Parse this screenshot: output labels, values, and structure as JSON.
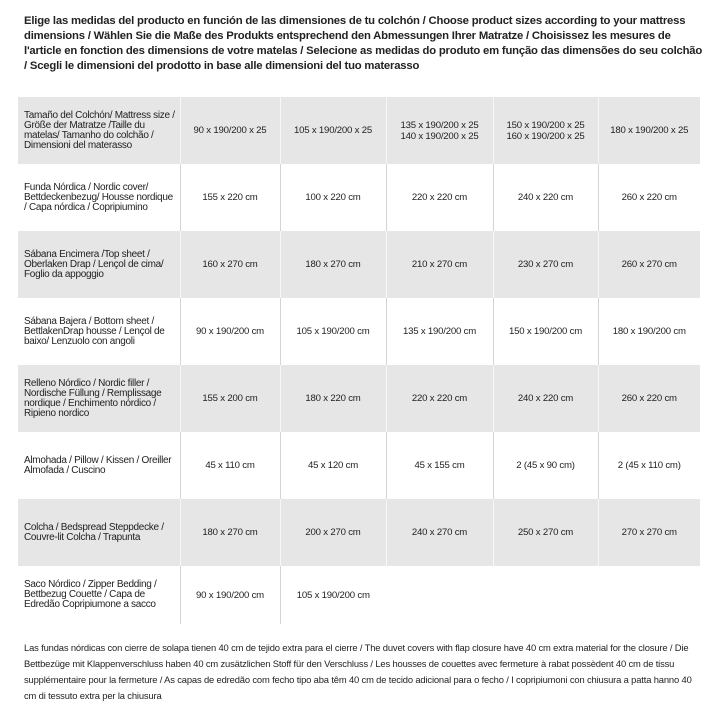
{
  "intro": "Elige las medidas del producto en función de las dimensiones de tu colchón / Choose product sizes according to your mattress dimensions / Wählen Sie die Maße des Produkts entsprechend den Abmessungen Ihrer Matratze / Choisissez les mesures de l'article en fonction des dimensions de votre matelas / Selecione as medidas do produto em função das dimensões do seu colchão / Scegli le dimensioni del prodotto in base alle dimensioni del tuo materasso",
  "table": {
    "header": [
      "Tamaño del Colchón/ Mattress size / Größe der Matratze /Taille du matelas/ Tamanho do colchão / Dimensioni del materasso",
      "90 x 190/200 x 25",
      "105 x 190/200 x 25",
      "135 x 190/200 x 25\n140 x 190/200 x 25",
      "150 x 190/200 x 25\n160 x 190/200 x 25",
      "180 x 190/200 x 25"
    ],
    "rows": [
      [
        "Funda Nórdica /  Nordic cover/ Bettdeckenbezug/ Housse nordique / Capa nórdica / Copripiumino",
        "155 x 220 cm",
        "100 x 220 cm",
        "220 x 220 cm",
        "240 x 220 cm",
        "260 x 220 cm"
      ],
      [
        "Sábana Encimera /Top sheet / Oberlaken Drap / Lençol de cima/ Foglio da appoggio",
        "160 x 270 cm",
        "180 x 270 cm",
        "210 x 270 cm",
        "230 x 270 cm",
        "260 x 270 cm"
      ],
      [
        "Sábana Bajera / Bottom sheet / BettlakenDrap housse / Lençol de baixo/ Lenzuolo con angoli",
        "90 x 190/200 cm",
        "105 x 190/200 cm",
        "135 x 190/200 cm",
        "150 x 190/200 cm",
        "180 x 190/200 cm"
      ],
      [
        "Relleno Nórdico / Nordic filler / Nordische Füllung / Remplissage nordique / Enchimento nórdico / Ripieno nordico",
        "155 x 200 cm",
        "180 x 220 cm",
        "220 x 220 cm",
        "240 x 220 cm",
        "260 x 220 cm"
      ],
      [
        "Almohada  / Pillow / Kissen / Oreiller Almofada / Cuscino",
        "45 x 110 cm",
        "45 x 120 cm",
        "45 x 155 cm",
        "2 (45 x 90 cm)",
        "2 (45 x 110 cm)"
      ],
      [
        "Colcha / Bedspread Steppdecke / Couvre-lit Colcha / Trapunta",
        "180 x 270 cm",
        "200 x 270 cm",
        "240 x 270 cm",
        "250 x 270 cm",
        "270 x 270 cm"
      ],
      [
        "Saco Nórdico / Zipper Bedding / Bettbezug Couette  / Capa de Edredão Copripiumone a sacco",
        "90 x 190/200 cm",
        "105 x 190/200 cm"
      ]
    ]
  },
  "footnote": "Las fundas nórdicas con cierre de solapa tienen 40 cm de tejido extra para el cierre  /  The duvet covers with flap closure have 40 cm extra material for the closure / Die Bettbezüge mit Klappenverschluss haben 40 cm zusätzlichen Stoff für den Verschluss / Les housses de couettes avec fermeture à rabat possèdent 40 cm de tissu supplémentaire pour la fermeture / As capas de edredão com fecho tipo aba têm 40 cm de tecido adicional para o fecho / I copripiumoni con chiusura a patta hanno 40 cm di tessuto extra per la chiusura"
}
